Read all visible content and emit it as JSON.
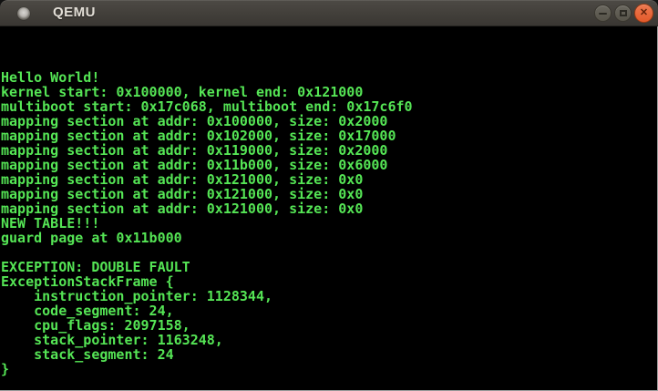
{
  "window": {
    "title": "QEMU",
    "titlebar": {
      "background": "#423f3a",
      "title_color": "#e2ded6"
    },
    "controls": {
      "minimize": {
        "icon": "minus-icon"
      },
      "maximize": {
        "icon": "square-icon"
      },
      "close": {
        "icon": "x-icon",
        "glyph": "✕",
        "color": "#e25a2a"
      }
    }
  },
  "terminal": {
    "foreground": "#55e555",
    "background": "#000000",
    "lines": [
      "",
      "",
      "",
      "Hello World!",
      "kernel start: 0x100000, kernel end: 0x121000",
      "multiboot start: 0x17c068, multiboot end: 0x17c6f0",
      "mapping section at addr: 0x100000, size: 0x2000",
      "mapping section at addr: 0x102000, size: 0x17000",
      "mapping section at addr: 0x119000, size: 0x2000",
      "mapping section at addr: 0x11b000, size: 0x6000",
      "mapping section at addr: 0x121000, size: 0x0",
      "mapping section at addr: 0x121000, size: 0x0",
      "mapping section at addr: 0x121000, size: 0x0",
      "NEW TABLE!!!",
      "guard page at 0x11b000",
      "",
      "EXCEPTION: DOUBLE FAULT",
      "ExceptionStackFrame {",
      "    instruction_pointer: 1128344,",
      "    code_segment: 24,",
      "    cpu_flags: 2097158,",
      "    stack_pointer: 1163248,",
      "    stack_segment: 24",
      "}",
      ""
    ]
  }
}
